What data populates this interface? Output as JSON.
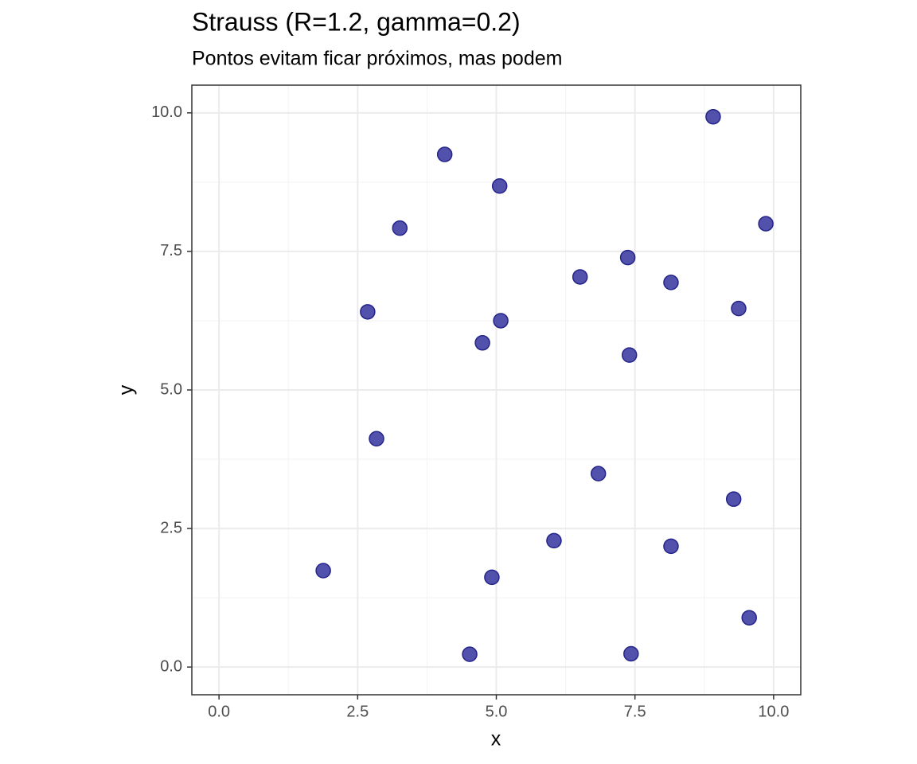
{
  "chart_data": {
    "type": "scatter",
    "title": "Strauss (R=1.2, gamma=0.2)",
    "subtitle": "Pontos evitam ficar próximos, mas podem",
    "x_label": "x",
    "y_label": "y",
    "x": [
      4.07,
      5.06,
      3.26,
      8.91,
      9.86,
      7.37,
      6.51,
      8.15,
      9.37,
      2.68,
      5.08,
      4.75,
      7.4,
      2.84,
      6.84,
      9.28,
      6.04,
      8.15,
      1.88,
      4.92,
      9.56,
      4.52,
      7.43
    ],
    "values": [
      9.25,
      8.68,
      7.92,
      9.93,
      8.0,
      7.39,
      7.04,
      6.94,
      6.47,
      6.41,
      6.25,
      5.85,
      5.63,
      4.12,
      3.49,
      3.03,
      2.28,
      2.18,
      1.74,
      1.62,
      0.89,
      0.23,
      0.24
    ],
    "color": "#3f3fa3",
    "xlim": [
      -0.49,
      10.49
    ],
    "ylim": [
      -0.5,
      10.5
    ],
    "xticks": [
      {
        "value": 0,
        "label": "0.0"
      },
      2.5,
      {
        "value": 5,
        "label": "5.0"
      },
      7.5,
      {
        "value": 10,
        "label": "10.0"
      }
    ],
    "yticks": [
      {
        "value": 0,
        "label": "0.0"
      },
      2.5,
      {
        "value": 5,
        "label": "5.0"
      },
      7.5,
      {
        "value": 10,
        "label": "10.0"
      }
    ],
    "minor_xticks": [
      1.25,
      3.75,
      6.25,
      8.75
    ],
    "minor_yticks": [
      1.25,
      3.75,
      6.25,
      8.75
    ],
    "grid": true
  }
}
